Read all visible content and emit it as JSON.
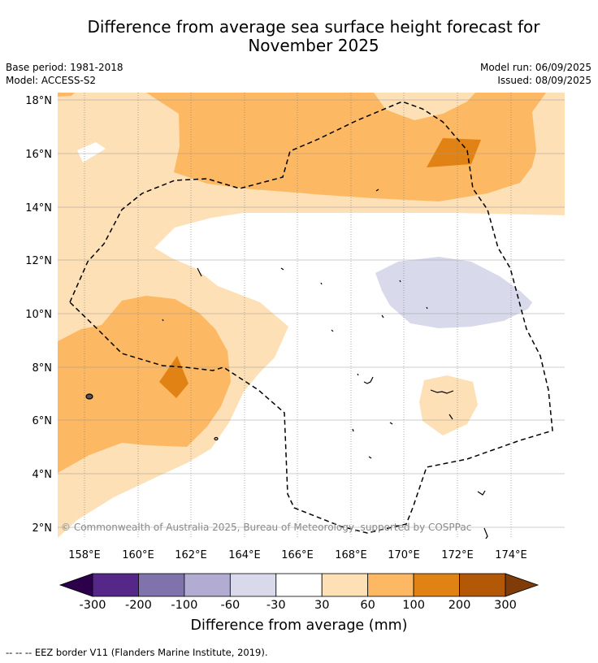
{
  "title_line1": "Difference from average sea surface height forecast for",
  "title_line2": "November 2025",
  "meta": {
    "base_period": "Base period: 1981-2018",
    "model": "Model: ACCESS-S2",
    "model_run": "Model run: 06/09/2025",
    "issued": "Issued: 08/09/2025"
  },
  "map": {
    "region": "Western Pacific (Marshall Islands / Kiribati area)",
    "lon_ticks": [
      "158°E",
      "160°E",
      "162°E",
      "164°E",
      "166°E",
      "168°E",
      "170°E",
      "172°E",
      "174°E"
    ],
    "lat_ticks": [
      "18°N",
      "16°N",
      "14°N",
      "12°N",
      "10°N",
      "8°N",
      "6°N",
      "4°N",
      "2°N"
    ],
    "lon_range": [
      157,
      176
    ],
    "lat_range": [
      1.5,
      18.2
    ],
    "copyright": "© Commonwealth of Australia 2025, Bureau of Meteorology, supported by COSPPac"
  },
  "colorbar": {
    "title": "Difference from average (mm)",
    "labels": [
      "-300",
      "-200",
      "-100",
      "-60",
      "-30",
      "30",
      "60",
      "100",
      "200",
      "300"
    ],
    "colors": {
      "under": "#2d004b",
      "bins": [
        "#542788",
        "#8073ac",
        "#b2abd2",
        "#d8daeb",
        "#ffffff",
        "#fee0b6",
        "#fdb863",
        "#e08214",
        "#b35806"
      ],
      "over": "#7f3b08"
    }
  },
  "footer": "--  --  -- EEZ border V11 (Flanders Marine Institute, 2019)."
}
